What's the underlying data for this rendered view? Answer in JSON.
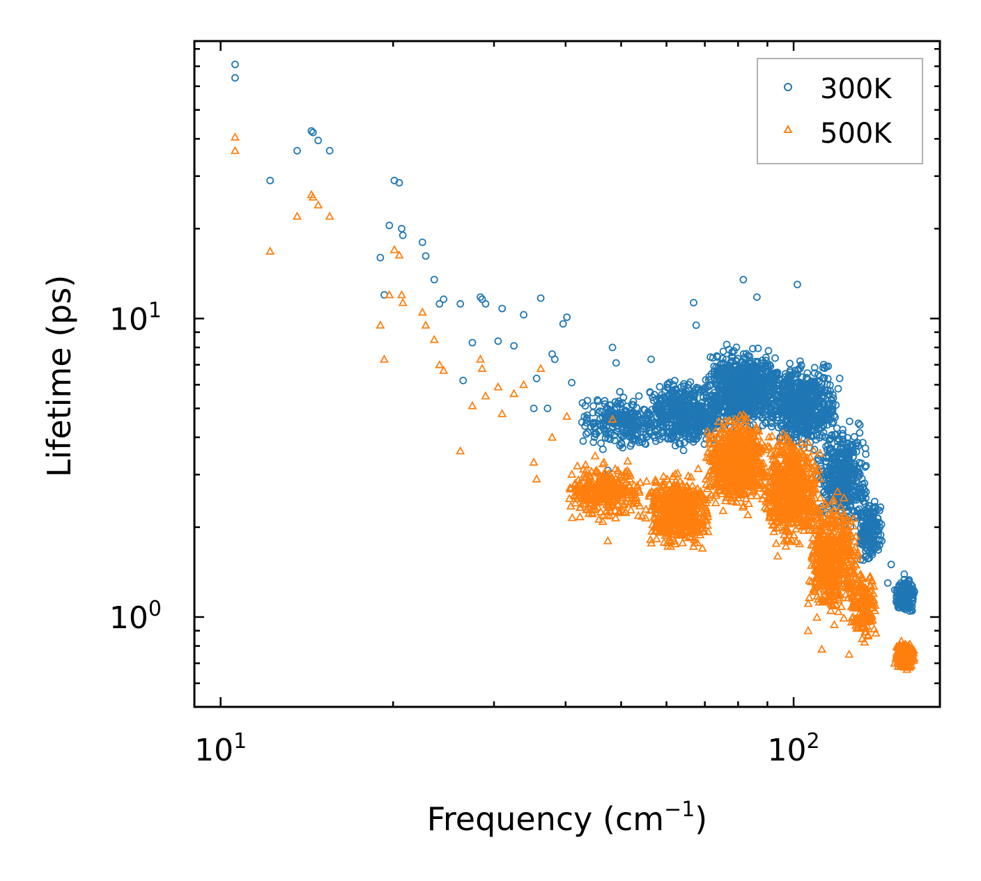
{
  "chart_data": {
    "type": "scatter",
    "title": "",
    "xlabel": "Frequency (cm",
    "xlabel_sup": "−1",
    "xlabel_end": ")",
    "ylabel": "Lifetime (ps)",
    "xscale": "log",
    "yscale": "log",
    "xlim": [
      9,
      180
    ],
    "ylim": [
      0.5,
      85
    ],
    "x_tick_labels": [
      {
        "base": "10",
        "exp": "1",
        "value": 10
      },
      {
        "base": "10",
        "exp": "2",
        "value": 100
      }
    ],
    "y_tick_labels": [
      {
        "base": "10",
        "exp": "0",
        "value": 1
      },
      {
        "base": "10",
        "exp": "1",
        "value": 10
      }
    ],
    "legend_position": "top-right",
    "series": [
      {
        "name": "300K",
        "color": "#1f77b4",
        "marker": "circle",
        "points": [
          [
            10.6,
            71
          ],
          [
            10.6,
            64
          ],
          [
            12.2,
            29
          ],
          [
            13.6,
            36.5
          ],
          [
            14.4,
            42.5
          ],
          [
            14.5,
            42
          ],
          [
            14.8,
            39.5
          ],
          [
            15.5,
            36.5
          ],
          [
            19.0,
            16
          ],
          [
            19.3,
            12
          ],
          [
            19.7,
            20.5
          ],
          [
            20.1,
            29
          ],
          [
            20.5,
            28.5
          ],
          [
            20.7,
            20
          ],
          [
            20.8,
            19
          ],
          [
            22.5,
            18
          ],
          [
            22.8,
            16.2
          ],
          [
            23.6,
            13.5
          ],
          [
            24.1,
            11.2
          ],
          [
            24.5,
            11.6
          ],
          [
            26.2,
            11.2
          ],
          [
            26.5,
            6.2
          ],
          [
            27.5,
            8.3
          ],
          [
            28.4,
            11.8
          ],
          [
            28.6,
            11.6
          ],
          [
            29.0,
            11.2
          ],
          [
            30.5,
            8.4
          ],
          [
            31.0,
            10.8
          ],
          [
            32.5,
            8.1
          ],
          [
            33.8,
            10.3
          ],
          [
            35.2,
            5.0
          ],
          [
            35.6,
            6.3
          ],
          [
            36.2,
            11.7
          ],
          [
            37.2,
            5.0
          ],
          [
            37.9,
            7.6
          ],
          [
            38.3,
            7.3
          ],
          [
            39.6,
            9.6
          ],
          [
            40.2,
            10.1
          ],
          [
            41.0,
            6.1
          ],
          [
            45.0,
            4.3
          ],
          [
            46.8,
            5.3
          ],
          [
            47.4,
            3.1
          ],
          [
            48.3,
            8.0
          ],
          [
            49.0,
            7.1
          ],
          [
            53.7,
            5.5
          ],
          [
            56.4,
            7.3
          ],
          [
            66.9,
            11.3
          ],
          [
            67.6,
            9.5
          ],
          [
            81.7,
            13.5
          ],
          [
            86.3,
            11.8
          ],
          [
            101.5,
            13.0
          ],
          [
            120.3,
            6.3
          ],
          [
            130.5,
            4.4
          ],
          [
            146.0,
            1.3
          ],
          [
            148.0,
            1.5
          ],
          [
            157.0,
            1.15
          ],
          [
            161.0,
            1.05
          ]
        ],
        "clouds": [
          {
            "x": [
              42,
              60
            ],
            "y": [
              3.5,
              5.8
            ],
            "n": 260
          },
          {
            "x": [
              55,
              75
            ],
            "y": [
              3.5,
              6.5
            ],
            "n": 500
          },
          {
            "x": [
              70,
              95
            ],
            "y": [
              4.0,
              8.5
            ],
            "n": 850
          },
          {
            "x": [
              90,
              120
            ],
            "y": [
              3.5,
              7.5
            ],
            "n": 650
          },
          {
            "x": [
              110,
              135
            ],
            "y": [
              1.8,
              4.8
            ],
            "n": 420
          },
          {
            "x": [
              128,
              143
            ],
            "y": [
              1.4,
              2.8
            ],
            "n": 160
          },
          {
            "x": [
              150,
              163
            ],
            "y": [
              1.0,
              1.4
            ],
            "n": 220
          }
        ]
      },
      {
        "name": "500K",
        "color": "#ff7f0e",
        "marker": "triangle",
        "points": [
          [
            10.6,
            40.5
          ],
          [
            10.6,
            36.5
          ],
          [
            12.2,
            16.8
          ],
          [
            13.6,
            22
          ],
          [
            14.4,
            26
          ],
          [
            14.5,
            25.5
          ],
          [
            14.8,
            24
          ],
          [
            15.5,
            22
          ],
          [
            19.0,
            9.5
          ],
          [
            19.3,
            7.3
          ],
          [
            19.7,
            12
          ],
          [
            20.1,
            17
          ],
          [
            20.5,
            16.3
          ],
          [
            20.7,
            12
          ],
          [
            20.8,
            11.3
          ],
          [
            22.5,
            10.5
          ],
          [
            22.8,
            9.5
          ],
          [
            23.6,
            8.5
          ],
          [
            24.1,
            7.0
          ],
          [
            24.5,
            6.7
          ],
          [
            26.2,
            3.6
          ],
          [
            27.5,
            5.1
          ],
          [
            28.4,
            7.3
          ],
          [
            28.6,
            6.8
          ],
          [
            29.0,
            5.5
          ],
          [
            30.5,
            5.9
          ],
          [
            31.0,
            4.8
          ],
          [
            32.5,
            5.6
          ],
          [
            33.8,
            6.0
          ],
          [
            35.2,
            3.3
          ],
          [
            35.6,
            2.9
          ],
          [
            36.2,
            6.8
          ],
          [
            37.9,
            4.0
          ],
          [
            40.2,
            4.7
          ],
          [
            45.0,
            2.3
          ],
          [
            47.4,
            1.8
          ],
          [
            48.3,
            4.6
          ],
          [
            69.3,
            1.7
          ],
          [
            83.2,
            2.2
          ],
          [
            87.4,
            2.7
          ],
          [
            93.8,
            1.6
          ],
          [
            106.0,
            0.9
          ],
          [
            112.0,
            0.78
          ],
          [
            125.0,
            0.75
          ],
          [
            150.0,
            0.7
          ]
        ],
        "clouds": [
          {
            "x": [
              40,
              55
            ],
            "y": [
              2.0,
              3.5
            ],
            "n": 320
          },
          {
            "x": [
              55,
              72
            ],
            "y": [
              1.6,
              3.2
            ],
            "n": 520
          },
          {
            "x": [
              70,
              90
            ],
            "y": [
              2.2,
              5.0
            ],
            "n": 850
          },
          {
            "x": [
              88,
              112
            ],
            "y": [
              1.6,
              4.5
            ],
            "n": 650
          },
          {
            "x": [
              105,
              130
            ],
            "y": [
              0.9,
              2.8
            ],
            "n": 520
          },
          {
            "x": [
              125,
              140
            ],
            "y": [
              0.75,
              1.6
            ],
            "n": 160
          },
          {
            "x": [
              150,
              163
            ],
            "y": [
              0.65,
              0.85
            ],
            "n": 220
          }
        ]
      }
    ]
  }
}
